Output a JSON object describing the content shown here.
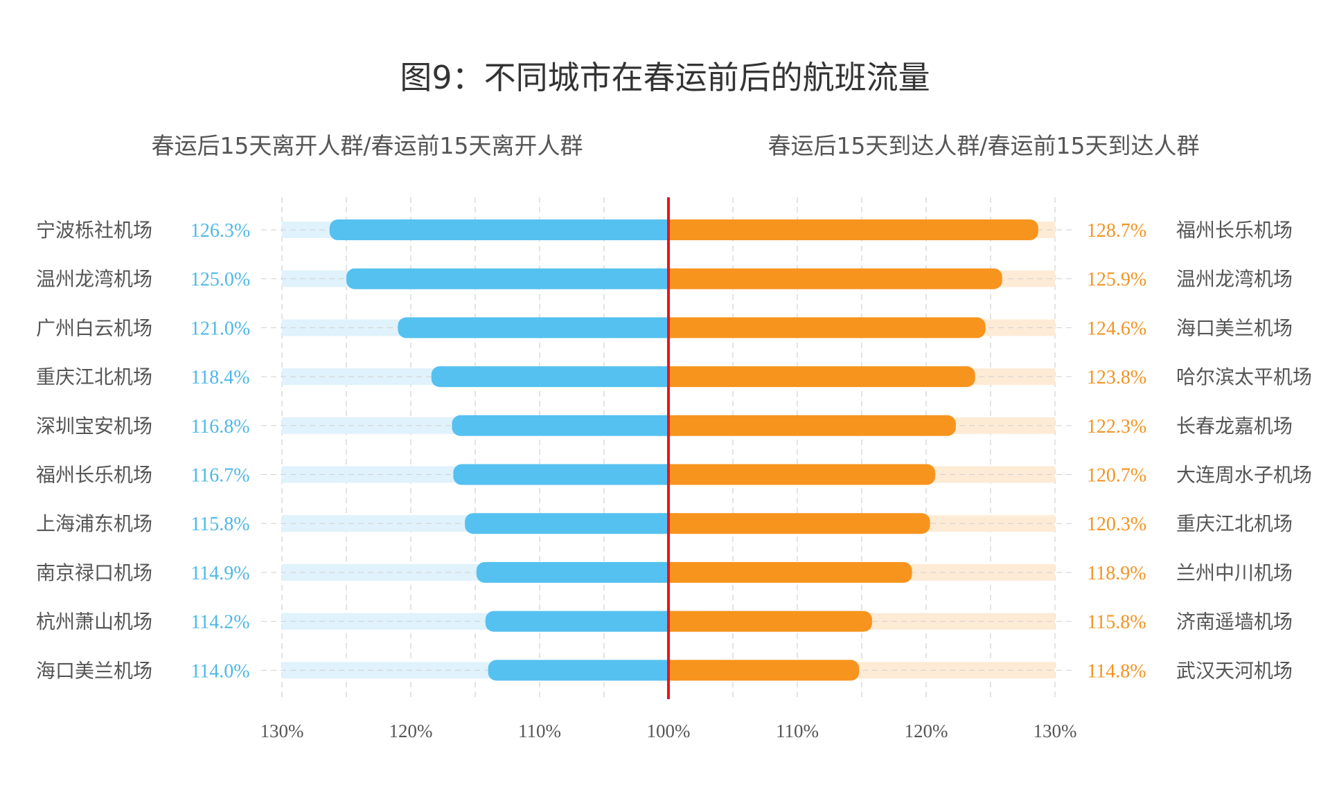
{
  "chart_data": {
    "type": "bar",
    "title": "图9：不同城市在春运前后的航班流量",
    "colors": {
      "left_bar": "#55C1F0",
      "left_track": "#E0F2FB",
      "left_label": "#4DB8E8",
      "right_bar": "#F7941E",
      "right_track": "#FDEBD6",
      "right_label": "#F39322",
      "center_line": "#E8141B",
      "grid": "#D0D0D0"
    },
    "axis": {
      "baseline": 100,
      "max": 130,
      "ticks_left": [
        "130%",
        "120%",
        "110%",
        "100%"
      ],
      "ticks_right": [
        "110%",
        "120%",
        "130%"
      ],
      "grid": true
    },
    "left": {
      "subtitle": "春运后15天离开人群/春运前15天离开人群",
      "categories": [
        "宁波栎社机场",
        "温州龙湾机场",
        "广州白云机场",
        "重庆江北机场",
        "深圳宝安机场",
        "福州长乐机场",
        "上海浦东机场",
        "南京禄口机场",
        "杭州萧山机场",
        "海口美兰机场"
      ],
      "values": [
        126.3,
        125.0,
        121.0,
        118.4,
        116.8,
        116.7,
        115.8,
        114.9,
        114.2,
        114.0
      ],
      "labels": [
        "126.3%",
        "125.0%",
        "121.0%",
        "118.4%",
        "116.8%",
        "116.7%",
        "115.8%",
        "114.9%",
        "114.2%",
        "114.0%"
      ]
    },
    "right": {
      "subtitle": "春运后15天到达人群/春运前15天到达人群",
      "categories": [
        "福州长乐机场",
        "温州龙湾机场",
        "海口美兰机场",
        "哈尔滨太平机场",
        "长春龙嘉机场",
        "大连周水子机场",
        "重庆江北机场",
        "兰州中川机场",
        "济南遥墙机场",
        "武汉天河机场"
      ],
      "values": [
        128.7,
        125.9,
        124.6,
        123.8,
        122.3,
        120.7,
        120.3,
        118.9,
        115.8,
        114.8
      ],
      "labels": [
        "128.7%",
        "125.9%",
        "124.6%",
        "123.8%",
        "122.3%",
        "120.7%",
        "120.3%",
        "118.9%",
        "115.8%",
        "114.8%"
      ]
    }
  }
}
